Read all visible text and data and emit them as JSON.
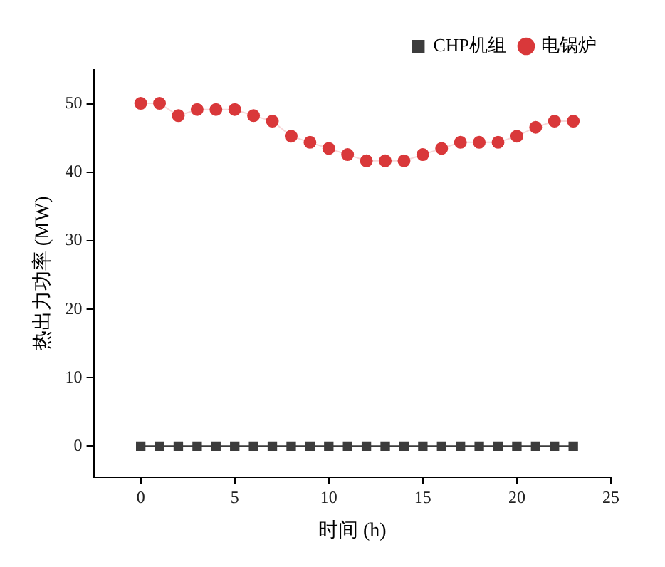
{
  "chart_data": {
    "type": "line",
    "xlabel": "时间 (h)",
    "ylabel": "热出力功率 (MW)",
    "x": [
      0,
      1,
      2,
      3,
      4,
      5,
      6,
      7,
      8,
      9,
      10,
      11,
      12,
      13,
      14,
      15,
      16,
      17,
      18,
      19,
      20,
      21,
      22,
      23
    ],
    "series": [
      {
        "name": "CHP机组",
        "color": "#3c3c3c",
        "marker": "square",
        "values": [
          0,
          0,
          0,
          0,
          0,
          0,
          0,
          0,
          0,
          0,
          0,
          0,
          0,
          0,
          0,
          0,
          0,
          0,
          0,
          0,
          0,
          0,
          0,
          0
        ]
      },
      {
        "name": "电锅炉",
        "color": "#d9383a",
        "marker": "circle",
        "values": [
          50.1,
          50.1,
          48.3,
          49.2,
          49.2,
          49.2,
          48.3,
          47.5,
          45.3,
          44.4,
          43.5,
          42.6,
          41.7,
          41.7,
          41.7,
          42.6,
          43.5,
          44.4,
          44.4,
          44.4,
          45.3,
          46.6,
          47.5,
          47.5
        ]
      }
    ],
    "xlim": [
      -2.5,
      25
    ],
    "xticks": [
      0,
      5,
      10,
      15,
      20,
      25
    ],
    "ylim": [
      -4.5,
      55
    ],
    "yticks": [
      0,
      10,
      20,
      30,
      40,
      50
    ],
    "grid": false,
    "legend": "top right"
  }
}
